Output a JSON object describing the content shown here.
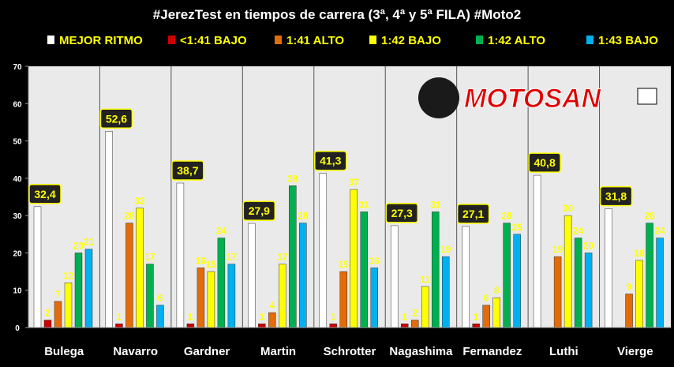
{
  "title": "#JerezTest en tiempos de carrera (3ª, 4ª y 5ª FILA) #Moto2",
  "logo_text": "MOTOSAN",
  "colors": {
    "background": "#000000",
    "plot_bg": "#eaeaea",
    "title": "#ffffff",
    "axis_text": "#ffffff",
    "label_text": "#ffff00",
    "best_label_bg": "#222222"
  },
  "chart_data": {
    "type": "bar",
    "title": "#JerezTest en tiempos de carrera (3ª, 4ª y 5ª FILA) #Moto2",
    "xlabel": "",
    "ylabel": "",
    "ylim": [
      0,
      70
    ],
    "yticks": [
      0,
      10,
      20,
      30,
      40,
      50,
      60,
      70
    ],
    "grid": false,
    "legend_position": "top",
    "categories": [
      "Bulega",
      "Navarro",
      "Gardner",
      "Martin",
      "Schrotter",
      "Nagashima",
      "Fernandez",
      "Luthi",
      "Vierge"
    ],
    "best_labels": [
      "32,4",
      "52,6",
      "38,7",
      "27,9",
      "41,3",
      "27,3",
      "27,1",
      "40,8",
      "31,8"
    ],
    "series": [
      {
        "name": "MEJOR RITMO",
        "color": "#ffffff",
        "values": [
          32.4,
          52.6,
          38.7,
          27.9,
          41.3,
          27.3,
          27.1,
          40.8,
          31.8
        ]
      },
      {
        "name": "<1:41 BAJO",
        "color": "#cc0000",
        "values": [
          2,
          1,
          1,
          1,
          1,
          1,
          1,
          null,
          null
        ]
      },
      {
        "name": "1:41 ALTO",
        "color": "#e36c0a",
        "values": [
          7,
          28,
          16,
          4,
          15,
          2,
          6,
          19,
          9
        ]
      },
      {
        "name": "1:42 BAJO",
        "color": "#ffff00",
        "values": [
          12,
          32,
          15,
          17,
          37,
          11,
          8,
          30,
          18
        ]
      },
      {
        "name": "1:42 ALTO",
        "color": "#00b050",
        "values": [
          20,
          17,
          24,
          38,
          31,
          31,
          28,
          24,
          28
        ]
      },
      {
        "name": "1:43 BAJO",
        "color": "#00b0f0",
        "values": [
          21,
          6,
          17,
          28,
          16,
          19,
          25,
          20,
          24
        ]
      }
    ]
  }
}
